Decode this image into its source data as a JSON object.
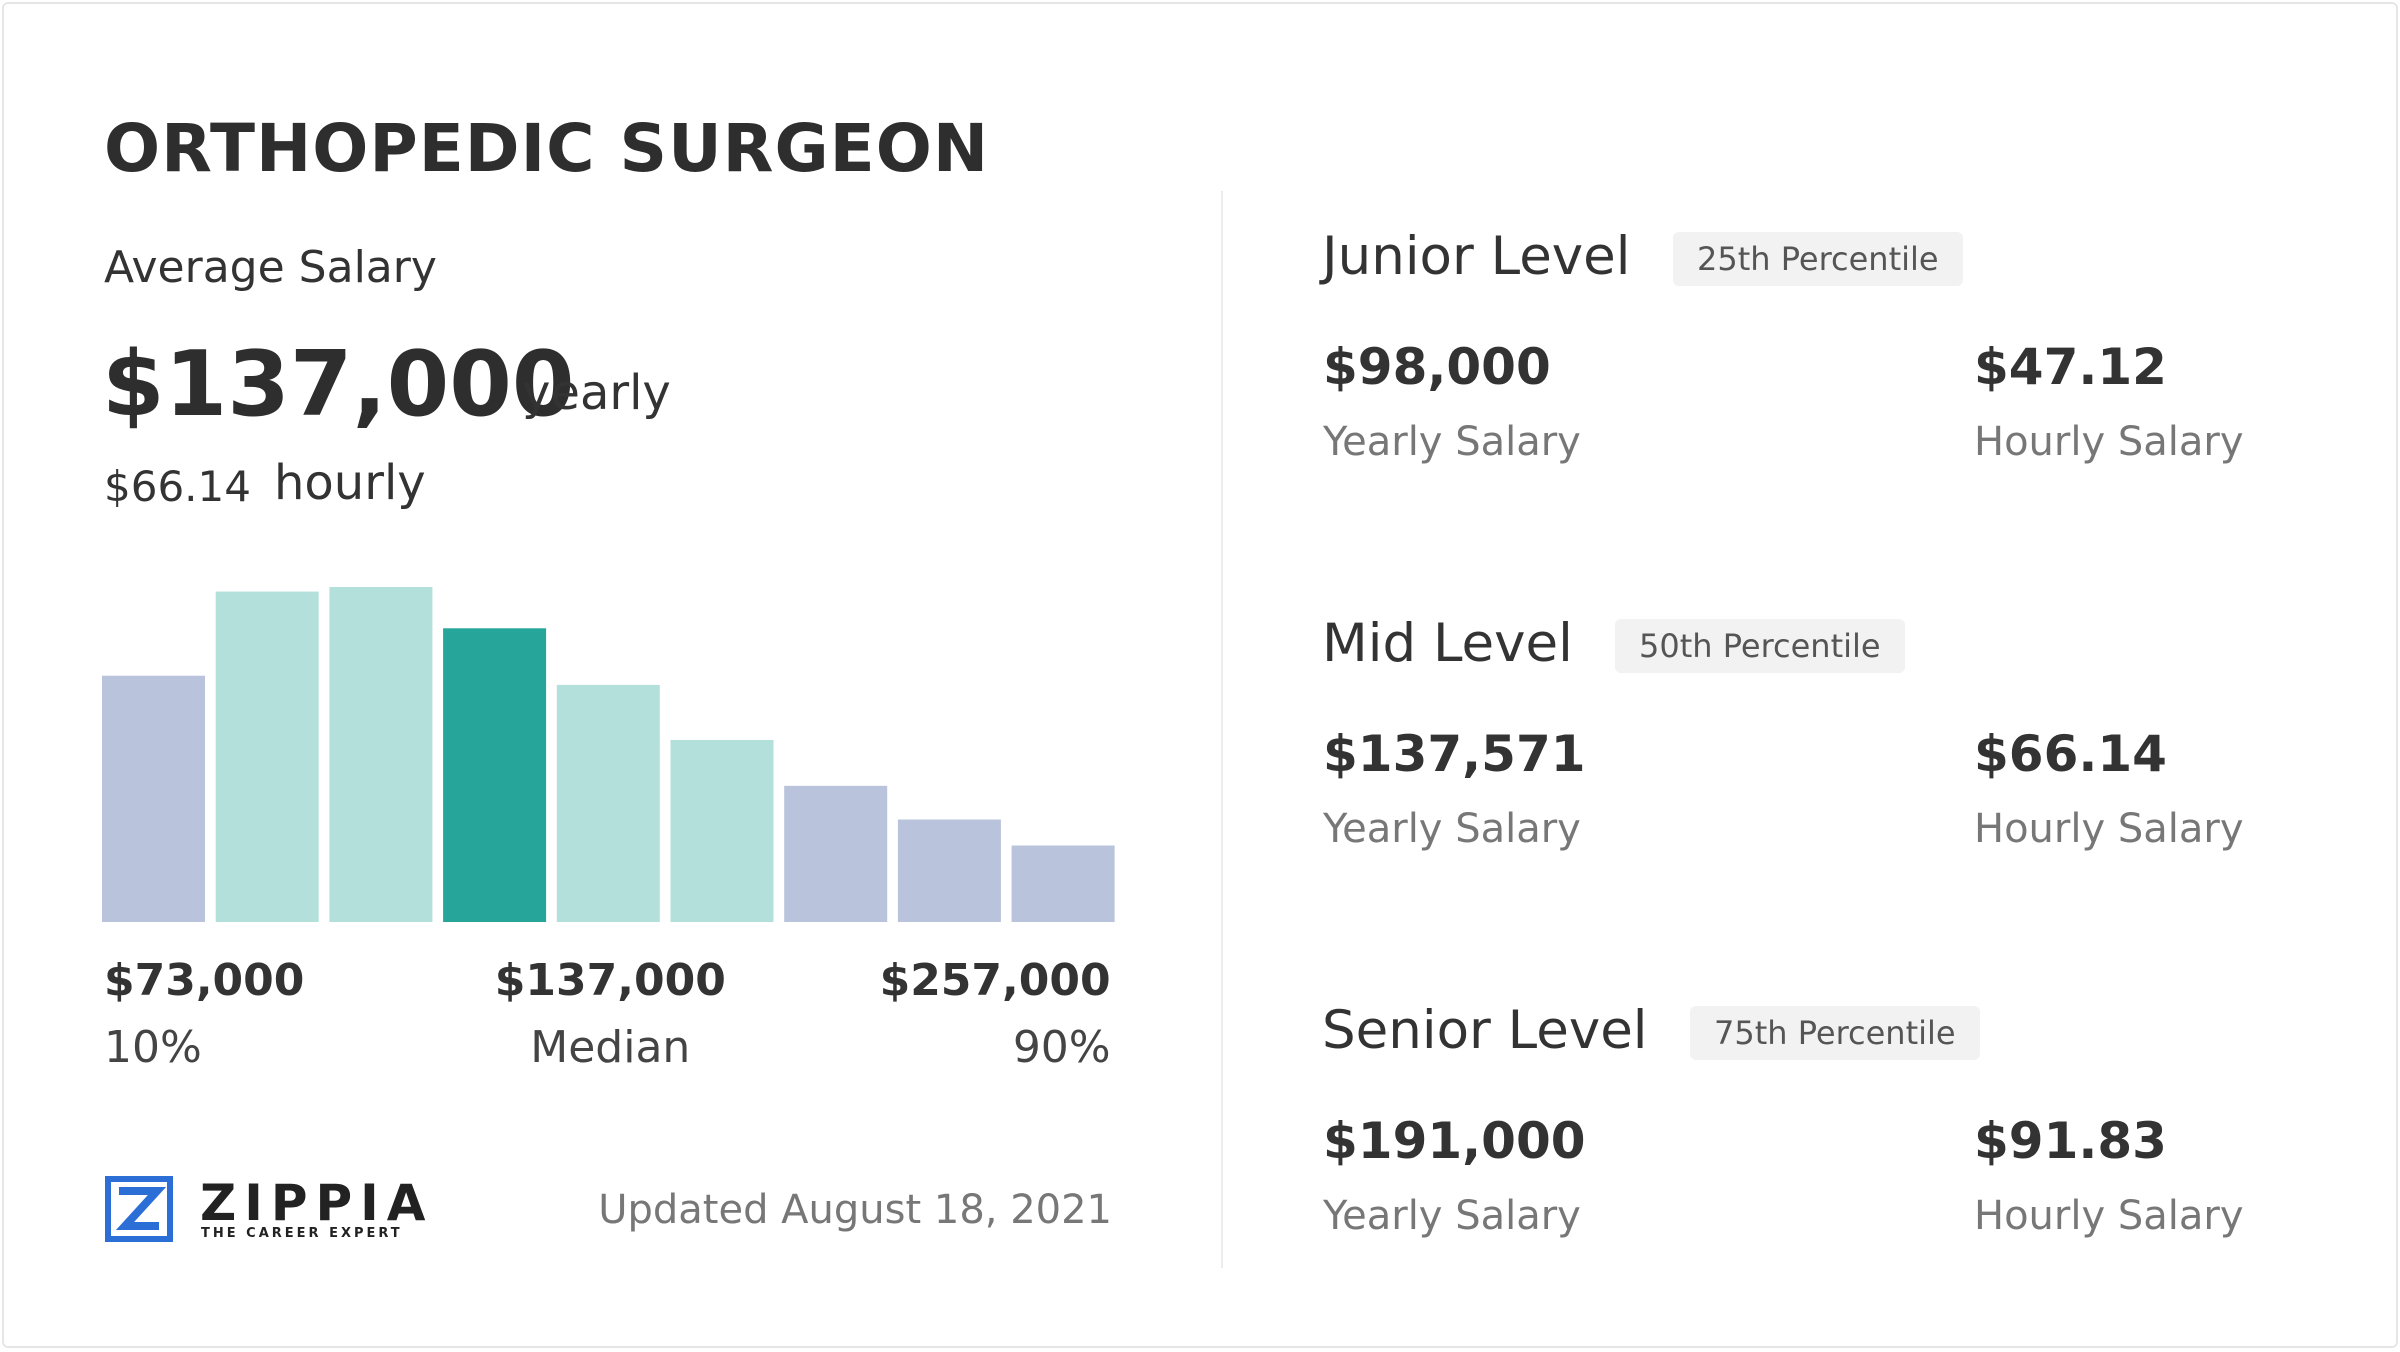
{
  "header": {
    "title": "ORTHOPEDIC SURGEON"
  },
  "average": {
    "label": "Average Salary",
    "yearly": "$137,000",
    "yearly_unit": "yearly",
    "hourly": "$66.14",
    "hourly_unit": "hourly"
  },
  "histogram": {
    "values": [
      161,
      216,
      219,
      192,
      155,
      119,
      89,
      67,
      50
    ],
    "colors": [
      "#b9c3dc",
      "#b3e0da",
      "#b3e0da",
      "#26a69a",
      "#b3e0da",
      "#b3e0da",
      "#b9c3dc",
      "#b9c3dc",
      "#b9c3dc"
    ],
    "markers": [
      {
        "amount": "$73,000",
        "caption": "10%"
      },
      {
        "amount": "$137,000",
        "caption": "Median"
      },
      {
        "amount": "$257,000",
        "caption": "90%"
      }
    ]
  },
  "footer": {
    "logo": "ZIPPIA",
    "tagline": "THE CAREER EXPERT",
    "updated": "Updated August 18, 2021"
  },
  "levels": [
    {
      "title": "Junior Level",
      "percentile": "25th Percentile",
      "yearly": "$98,000",
      "yearly_label": "Yearly Salary",
      "hourly": "$47.12",
      "hourly_label": "Hourly Salary"
    },
    {
      "title": "Mid Level",
      "percentile": "50th Percentile",
      "yearly": "$137,571",
      "yearly_label": "Yearly Salary",
      "hourly": "$66.14",
      "hourly_label": "Hourly Salary"
    },
    {
      "title": "Senior Level",
      "percentile": "75th Percentile",
      "yearly": "$191,000",
      "yearly_label": "Yearly Salary",
      "hourly": "$91.83",
      "hourly_label": "Hourly Salary"
    }
  ]
}
